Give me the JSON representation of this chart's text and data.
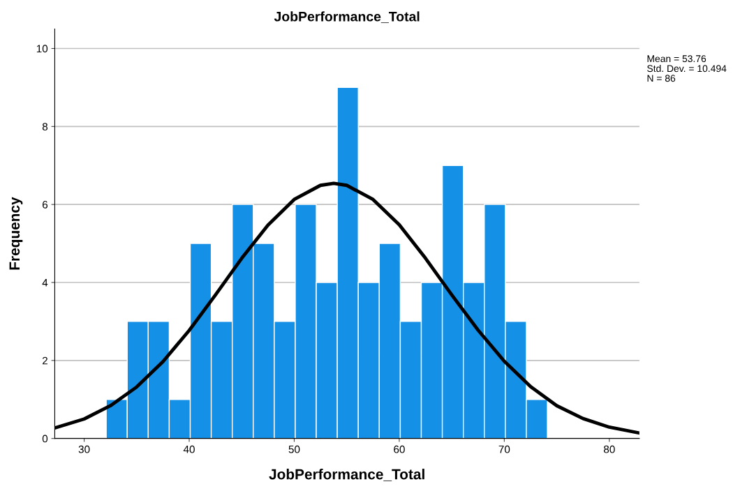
{
  "chart_data": {
    "type": "histogram",
    "title": "JobPerformance_Total",
    "xlabel": "JobPerformance_Total",
    "ylabel": "Frequency",
    "bins": [
      32.1,
      34.1,
      36.1,
      38.1,
      40.1,
      42.1,
      44.1,
      46.1,
      48.1,
      50.1,
      52.1,
      54.1,
      56.1,
      58.1,
      60.1,
      62.1,
      64.1,
      66.1,
      68.1,
      70.1,
      72.1,
      74.1
    ],
    "values": [
      1,
      3,
      3,
      1,
      5,
      3,
      6,
      5,
      3,
      6,
      4,
      9,
      4,
      5,
      3,
      4,
      7,
      4,
      6,
      3,
      1
    ],
    "color": "#1490e6",
    "series": [
      {
        "type": "line",
        "color": "#000000",
        "x": [
          27.2,
          30,
          32.5,
          35,
          37.5,
          40,
          42.5,
          45,
          47.5,
          50,
          52.5,
          53.76,
          55,
          57.5,
          60,
          62.5,
          65,
          67.5,
          70,
          72.5,
          75,
          77.5,
          80,
          82.86
        ],
        "values": [
          0.27,
          0.5,
          0.84,
          1.32,
          1.97,
          2.77,
          3.68,
          4.62,
          5.47,
          6.13,
          6.49,
          6.54,
          6.49,
          6.13,
          5.48,
          4.62,
          3.68,
          2.78,
          1.98,
          1.33,
          0.84,
          0.51,
          0.29,
          0.14
        ]
      }
    ],
    "xlim": [
      27.2,
      82.86
    ],
    "xticks": [
      30,
      40,
      50,
      60,
      70,
      80
    ],
    "ylim": [
      0,
      10.5
    ],
    "yticks": [
      0,
      2,
      4,
      6,
      8,
      10
    ],
    "grid": "y",
    "annotations": [
      "Mean = 53.76",
      "Std. Dev. = 10.494",
      "N = 86"
    ]
  }
}
